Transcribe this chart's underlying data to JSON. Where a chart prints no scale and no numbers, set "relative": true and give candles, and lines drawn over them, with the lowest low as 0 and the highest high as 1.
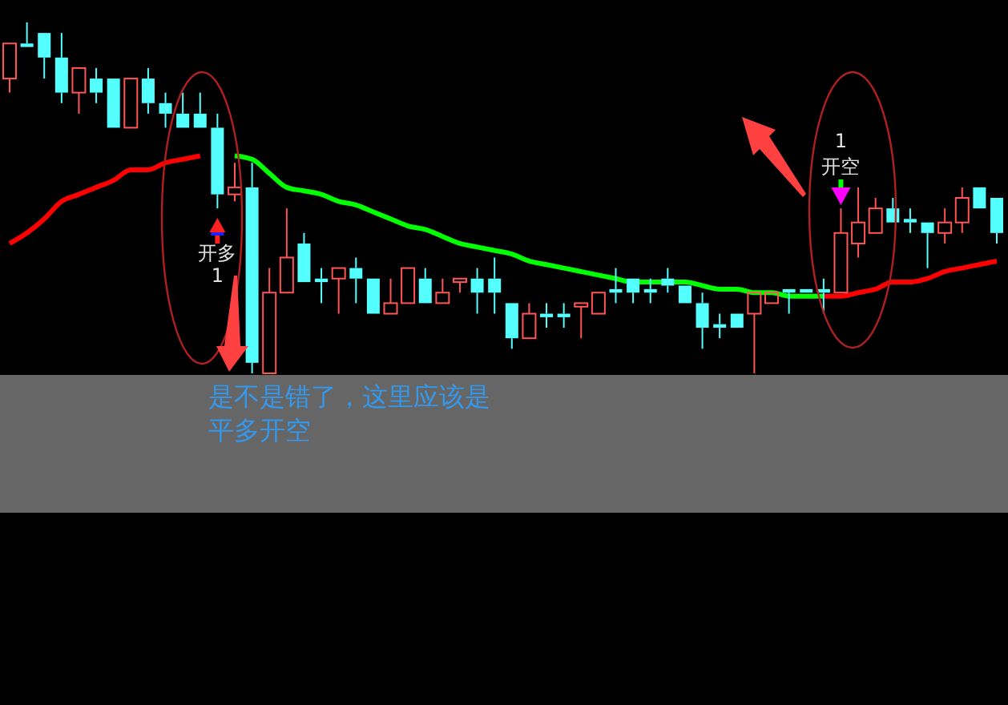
{
  "chart_data": {
    "type": "candlestick",
    "relative": true,
    "categories": [
      null,
      null,
      null,
      null,
      null,
      null,
      null,
      null,
      null,
      null,
      null,
      null,
      null,
      null,
      null,
      null,
      null,
      null,
      null,
      null,
      null,
      null,
      null,
      null,
      null,
      null,
      null,
      null,
      null,
      null,
      null,
      null,
      null,
      null,
      null,
      null,
      null,
      null,
      null,
      null,
      null,
      null,
      null,
      null,
      null,
      null,
      null,
      null,
      null,
      null,
      null,
      null,
      null,
      null,
      null,
      null,
      null,
      null
    ],
    "ohlc": [
      [
        0.84,
        0.94,
        0.8,
        0.94
      ],
      [
        0.94,
        1.0,
        0.93,
        0.93
      ],
      [
        0.97,
        0.97,
        0.84,
        0.9
      ],
      [
        0.9,
        0.97,
        0.77,
        0.8
      ],
      [
        0.8,
        0.87,
        0.74,
        0.87
      ],
      [
        0.84,
        0.87,
        0.77,
        0.8
      ],
      [
        0.84,
        0.84,
        0.7,
        0.7
      ],
      [
        0.7,
        0.84,
        0.7,
        0.84
      ],
      [
        0.84,
        0.87,
        0.74,
        0.77
      ],
      [
        0.77,
        0.8,
        0.7,
        0.74
      ],
      [
        0.74,
        0.8,
        0.7,
        0.7
      ],
      [
        0.74,
        0.8,
        0.7,
        0.7
      ],
      [
        0.7,
        0.74,
        0.47,
        0.51
      ],
      [
        0.51,
        0.6,
        0.49,
        0.53
      ],
      [
        0.53,
        0.6,
        0.0,
        0.03
      ],
      [
        0.0,
        0.3,
        0.0,
        0.23
      ],
      [
        0.23,
        0.47,
        0.23,
        0.33
      ],
      [
        0.37,
        0.4,
        0.26,
        0.26
      ],
      [
        0.27,
        0.3,
        0.2,
        0.26
      ],
      [
        0.27,
        0.3,
        0.17,
        0.3
      ],
      [
        0.3,
        0.33,
        0.2,
        0.27
      ],
      [
        0.27,
        0.27,
        0.17,
        0.17
      ],
      [
        0.17,
        0.27,
        0.17,
        0.2
      ],
      [
        0.2,
        0.3,
        0.2,
        0.3
      ],
      [
        0.27,
        0.3,
        0.2,
        0.2
      ],
      [
        0.2,
        0.27,
        0.2,
        0.23
      ],
      [
        0.26,
        0.27,
        0.23,
        0.27
      ],
      [
        0.27,
        0.3,
        0.17,
        0.23
      ],
      [
        0.27,
        0.33,
        0.17,
        0.23
      ],
      [
        0.2,
        0.2,
        0.07,
        0.1
      ],
      [
        0.1,
        0.2,
        0.1,
        0.17
      ],
      [
        0.17,
        0.2,
        0.13,
        0.16
      ],
      [
        0.17,
        0.2,
        0.13,
        0.16
      ],
      [
        0.19,
        0.2,
        0.1,
        0.2
      ],
      [
        0.17,
        0.23,
        0.17,
        0.23
      ],
      [
        0.24,
        0.3,
        0.2,
        0.23
      ],
      [
        0.27,
        0.27,
        0.2,
        0.23
      ],
      [
        0.24,
        0.27,
        0.2,
        0.23
      ],
      [
        0.27,
        0.3,
        0.23,
        0.25
      ],
      [
        0.25,
        0.25,
        0.2,
        0.2
      ],
      [
        0.2,
        0.23,
        0.07,
        0.13
      ],
      [
        0.14,
        0.17,
        0.1,
        0.13
      ],
      [
        0.17,
        0.17,
        0.13,
        0.13
      ],
      [
        0.17,
        0.23,
        0.0,
        0.23
      ],
      [
        0.2,
        0.23,
        0.2,
        0.23
      ],
      [
        0.24,
        0.24,
        0.17,
        0.23
      ],
      [
        0.24,
        0.24,
        0.23,
        0.23
      ],
      [
        0.24,
        0.27,
        0.17,
        0.23
      ],
      [
        0.23,
        0.47,
        0.23,
        0.4
      ],
      [
        0.37,
        0.53,
        0.33,
        0.43
      ],
      [
        0.4,
        0.5,
        0.4,
        0.47
      ],
      [
        0.47,
        0.5,
        0.43,
        0.43
      ],
      [
        0.44,
        0.47,
        0.4,
        0.43
      ],
      [
        0.43,
        0.43,
        0.3,
        0.4
      ],
      [
        0.4,
        0.47,
        0.37,
        0.43
      ],
      [
        0.43,
        0.53,
        0.4,
        0.5
      ],
      [
        0.53,
        0.53,
        0.47,
        0.47
      ],
      [
        0.5,
        0.5,
        0.37,
        0.4
      ]
    ],
    "series": [
      {
        "type": "line",
        "color": "#ff0000",
        "values": [
          0.37,
          0.4,
          0.44,
          0.49,
          0.51,
          0.53,
          0.55,
          0.58,
          0.58,
          0.6,
          0.61,
          0.62,
          null,
          null,
          null,
          null,
          null,
          null,
          null,
          null,
          null,
          null,
          null,
          null,
          null,
          null,
          null,
          null,
          null,
          null,
          null,
          null,
          null,
          null,
          null,
          null,
          null,
          null,
          null,
          null,
          null,
          null,
          null,
          null,
          null,
          null,
          null,
          0.22,
          0.22,
          0.23,
          0.24,
          0.26,
          0.26,
          0.27,
          0.29,
          0.3,
          0.31,
          0.32
        ]
      },
      {
        "type": "line",
        "color": "#00ff00",
        "values": [
          null,
          null,
          null,
          null,
          null,
          null,
          null,
          null,
          null,
          null,
          null,
          null,
          null,
          0.62,
          0.61,
          0.57,
          0.53,
          0.52,
          0.51,
          0.49,
          0.48,
          0.46,
          0.44,
          0.42,
          0.41,
          0.39,
          0.37,
          0.36,
          0.35,
          0.34,
          0.32,
          0.31,
          0.3,
          0.29,
          0.28,
          0.27,
          0.26,
          0.26,
          0.26,
          0.26,
          0.25,
          0.24,
          0.24,
          0.23,
          0.23,
          0.22,
          0.22,
          0.22,
          null,
          null,
          null,
          null,
          null,
          null,
          null,
          null,
          null,
          null
        ]
      }
    ],
    "annotations": [
      "开多",
      "1",
      "1",
      "开空",
      "是不是错了，这里应该是平多开空"
    ]
  }
}
